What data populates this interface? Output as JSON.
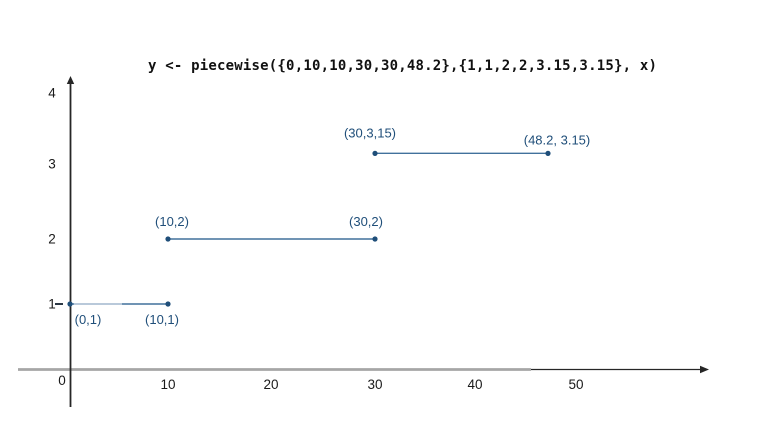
{
  "chart_data": {
    "type": "line",
    "title": "y <- piecewise({0,10,10,30,30,48.2},{1,1,2,2,3.15,3.15}, x)",
    "xlabel": "",
    "ylabel": "",
    "xlim": [
      0,
      62
    ],
    "ylim": [
      0,
      4.5
    ],
    "grid": false,
    "legend": false,
    "x_ticks": [
      10,
      20,
      30,
      40,
      50
    ],
    "y_ticks": [
      1,
      2,
      3,
      4
    ],
    "origin_label": "0",
    "segments": [
      {
        "label_side": "below",
        "points": [
          {
            "x": 0,
            "y": 1,
            "label": "(0,1)"
          },
          {
            "x": 10,
            "y": 1,
            "label": "(10,1)"
          }
        ]
      },
      {
        "label_side": "above",
        "points": [
          {
            "x": 10,
            "y": 2,
            "label": "(10,2)"
          },
          {
            "x": 30,
            "y": 2,
            "label": "(30,2)"
          }
        ]
      },
      {
        "label_side": "above",
        "points": [
          {
            "x": 30,
            "y": 3.15,
            "label": "(30,3,15)"
          },
          {
            "x": 48.2,
            "y": 3.15,
            "label": "(48.2, 3.15)"
          }
        ]
      }
    ],
    "colors": {
      "point": "#1f4e79",
      "segment_line": "#41719c",
      "segment_light": "#b9c9da",
      "label": "#1f4e79",
      "axis": "#262626",
      "axis_gray": "#a6a6a6",
      "tick_text": "#1a1a1a",
      "background": "#ffffff"
    }
  }
}
